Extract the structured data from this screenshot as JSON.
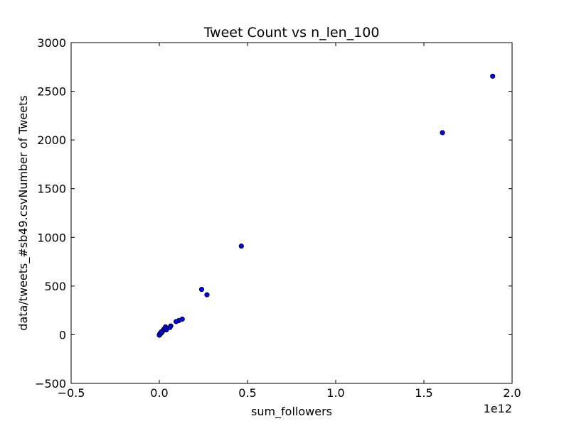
{
  "chart_data": {
    "type": "scatter",
    "title": "Tweet Count vs n_len_100",
    "xlabel": "sum_followers",
    "ylabel": "data/tweets_#sb49.csvNumber of Tweets",
    "x_offset_label": "1e12",
    "xlim": [
      -0.5,
      2.0
    ],
    "ylim": [
      -500,
      3000
    ],
    "x_ticks": [
      -0.5,
      0.0,
      0.5,
      1.0,
      1.5,
      2.0
    ],
    "x_tick_labels": [
      "−0.5",
      "0.0",
      "0.5",
      "1.0",
      "1.5",
      "2.0"
    ],
    "y_ticks": [
      -500,
      0,
      500,
      1000,
      1500,
      2000,
      2500,
      3000
    ],
    "y_tick_labels": [
      "−500",
      "0",
      "500",
      "1000",
      "1500",
      "2000",
      "2500",
      "3000"
    ],
    "grid": false,
    "marker_color": "#0000ff",
    "marker_edge_color": "#000000",
    "points": [
      {
        "x": 1.89,
        "y": 2655
      },
      {
        "x": 1.605,
        "y": 2075
      },
      {
        "x": 0.465,
        "y": 910
      },
      {
        "x": 0.24,
        "y": 465
      },
      {
        "x": 0.27,
        "y": 410
      },
      {
        "x": 0.13,
        "y": 160
      },
      {
        "x": 0.11,
        "y": 145
      },
      {
        "x": 0.095,
        "y": 135
      },
      {
        "x": 0.065,
        "y": 90
      },
      {
        "x": 0.06,
        "y": 75
      },
      {
        "x": 0.04,
        "y": 70
      },
      {
        "x": 0.035,
        "y": 80
      },
      {
        "x": 0.04,
        "y": 50
      },
      {
        "x": 0.025,
        "y": 55
      },
      {
        "x": 0.02,
        "y": 40
      },
      {
        "x": 0.015,
        "y": 25
      },
      {
        "x": 0.01,
        "y": 15
      },
      {
        "x": 0.005,
        "y": 5
      },
      {
        "x": 0.003,
        "y": 10
      },
      {
        "x": 0.001,
        "y": 0
      },
      {
        "x": 0.0,
        "y": -5
      },
      {
        "x": 0.008,
        "y": 20
      },
      {
        "x": 0.012,
        "y": 30
      }
    ]
  }
}
